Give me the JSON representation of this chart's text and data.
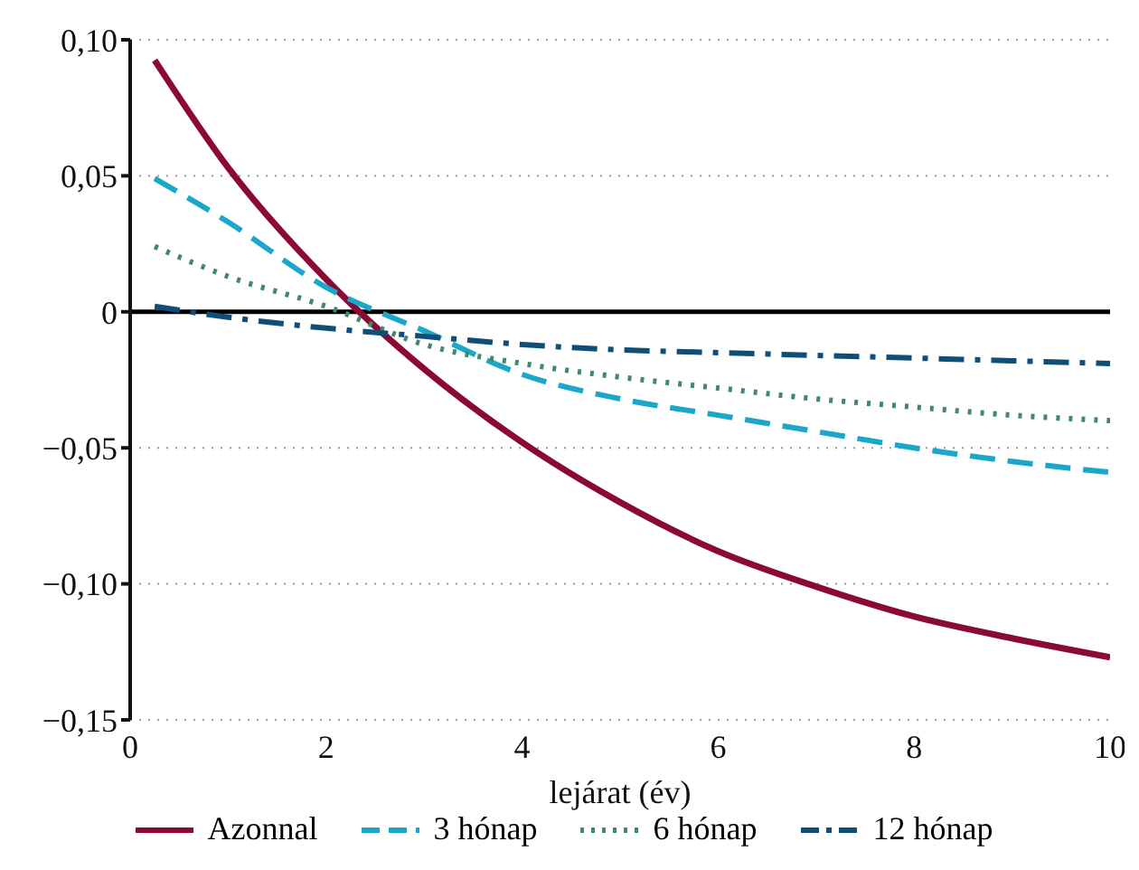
{
  "chart_data": {
    "type": "line",
    "xlabel": "lejárat (év)",
    "xlim": [
      0,
      10
    ],
    "xticks": [
      0,
      2,
      4,
      6,
      8,
      10
    ],
    "ylim": [
      -0.15,
      0.1
    ],
    "yticks": [
      {
        "value": -0.15,
        "label": "−0,15"
      },
      {
        "value": -0.1,
        "label": "−0,10"
      },
      {
        "value": -0.05,
        "label": "−0,05"
      },
      {
        "value": 0,
        "label": "0"
      },
      {
        "value": 0.05,
        "label": "0,05"
      },
      {
        "value": 0.1,
        "label": "0,10"
      }
    ],
    "grid": "y",
    "legend": "bottom",
    "marker": "none",
    "ref_lines": [
      {
        "axis": "y",
        "value": 0,
        "color": "#000000"
      }
    ],
    "series": [
      {
        "name": "Azonnal",
        "color": "#8b0a35",
        "line_style": "solid",
        "x": [
          0.25,
          1,
          2,
          3,
          4,
          5,
          6,
          7,
          8,
          9,
          10
        ],
        "values": [
          0.0925,
          0.053,
          0.012,
          -0.021,
          -0.048,
          -0.07,
          -0.088,
          -0.101,
          -0.112,
          -0.12,
          -0.127
        ]
      },
      {
        "name": "3 hónap",
        "color": "#1aa7c9",
        "line_style": "dashed",
        "x": [
          0.25,
          1,
          2,
          3,
          4,
          5,
          6,
          7,
          8,
          9,
          10
        ],
        "values": [
          0.049,
          0.033,
          0.009,
          -0.007,
          -0.023,
          -0.032,
          -0.038,
          -0.044,
          -0.05,
          -0.055,
          -0.059
        ]
      },
      {
        "name": "6 hónap",
        "color": "#3e8a6a",
        "line_style": "dotted",
        "x": [
          0.25,
          1,
          2,
          3,
          4,
          5,
          6,
          7,
          8,
          9,
          10
        ],
        "values": [
          0.024,
          0.013,
          0.002,
          -0.012,
          -0.019,
          -0.024,
          -0.028,
          -0.032,
          -0.035,
          -0.038,
          -0.04
        ]
      },
      {
        "name": "12 hónap",
        "color": "#0f4f77",
        "line_style": "dashdot",
        "x": [
          0.25,
          1,
          2,
          3,
          4,
          5,
          6,
          7,
          8,
          9,
          10
        ],
        "values": [
          0.002,
          -0.002,
          -0.006,
          -0.009,
          -0.012,
          -0.014,
          -0.015,
          -0.016,
          -0.017,
          -0.018,
          -0.019
        ]
      }
    ]
  }
}
